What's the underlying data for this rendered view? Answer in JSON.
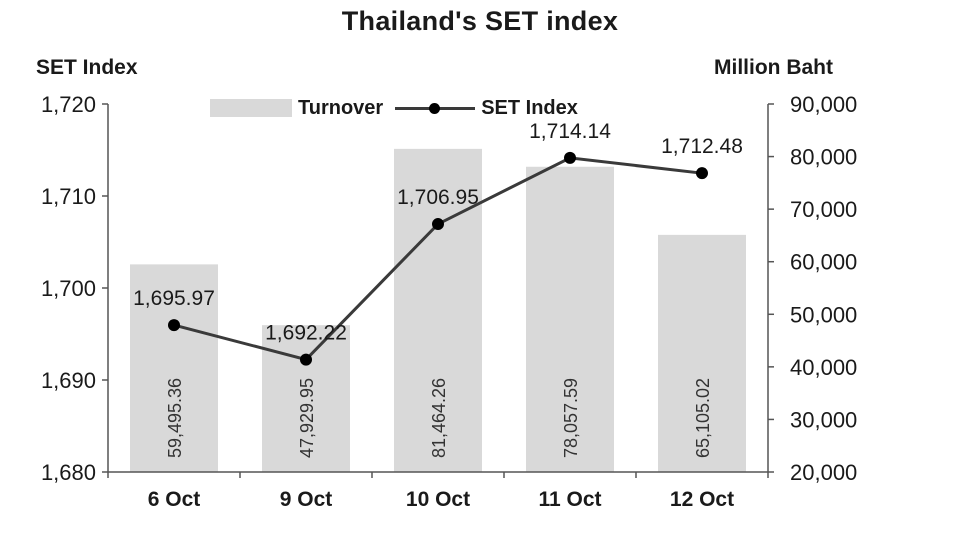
{
  "chart_data": {
    "type": "bar",
    "title": "Thailand's SET index",
    "categories": [
      "6 Oct",
      "9 Oct",
      "10 Oct",
      "11 Oct",
      "12 Oct"
    ],
    "series": [
      {
        "name": "Turnover",
        "kind": "bar",
        "axis": "right",
        "values": [
          59495.36,
          47929.95,
          81464.26,
          78057.59,
          65105.02
        ],
        "labels": [
          "59,495.36",
          "47,929.95",
          "81,464.26",
          "78,057.59",
          "65,105.02"
        ],
        "color": "#d9d9d9"
      },
      {
        "name": "SET Index",
        "kind": "line",
        "axis": "left",
        "values": [
          1695.97,
          1692.22,
          1706.95,
          1714.14,
          1712.48
        ],
        "labels": [
          "1,695.97",
          "1,692.22",
          "1,706.95",
          "1,714.14",
          "1,712.48"
        ],
        "color": "#3a3a3a",
        "marker_color": "#000000"
      }
    ],
    "ylabel_left": "SET Index",
    "ylabel_right": "Million Baht",
    "ylim_left": [
      1680,
      1720
    ],
    "ylim_right": [
      20000,
      90000
    ],
    "yticks_left": [
      "1,680",
      "1,690",
      "1,700",
      "1,710",
      "1,720"
    ],
    "yticks_right": [
      "20,000",
      "30,000",
      "40,000",
      "50,000",
      "60,000",
      "70,000",
      "80,000",
      "90,000"
    ],
    "legend": {
      "items": [
        "Turnover",
        "SET Index"
      ],
      "position": "top-center"
    },
    "grid": false
  }
}
